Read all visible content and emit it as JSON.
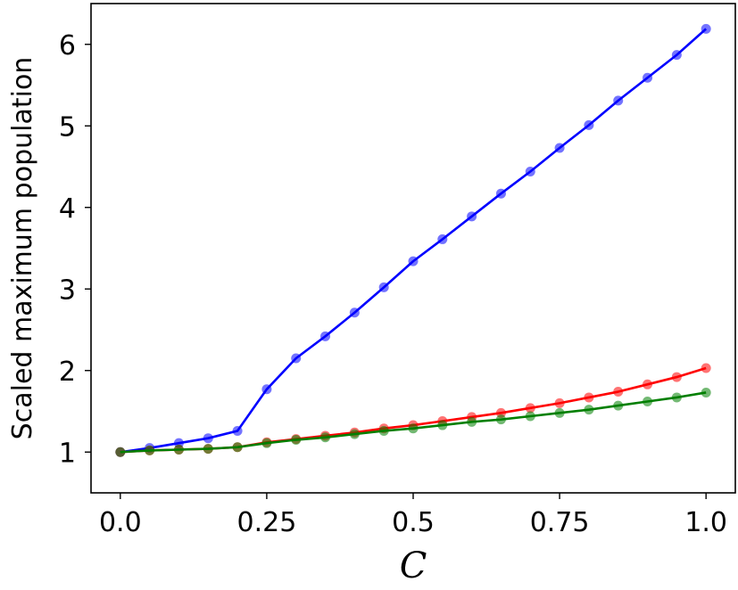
{
  "chart_data": {
    "type": "line",
    "xlabel": "C",
    "ylabel": "Scaled maximum population",
    "xlim": [
      -0.05,
      1.05
    ],
    "ylim": [
      0.5,
      6.5
    ],
    "xticks": [
      0.0,
      0.25,
      0.5,
      0.75,
      1.0
    ],
    "xtick_labels": [
      "0.0",
      "0.25",
      "0.5",
      "0.75",
      "1.0"
    ],
    "yticks": [
      1,
      2,
      3,
      4,
      5,
      6
    ],
    "ytick_labels": [
      "1",
      "2",
      "3",
      "4",
      "5",
      "6"
    ],
    "grid": false,
    "x": [
      0.0,
      0.05,
      0.1,
      0.15,
      0.2,
      0.25,
      0.3,
      0.35,
      0.4,
      0.45,
      0.5,
      0.55,
      0.6,
      0.65,
      0.7,
      0.75,
      0.8,
      0.85,
      0.9,
      0.95,
      1.0
    ],
    "series": [
      {
        "color": "#0000ff",
        "values": [
          1.0,
          1.05,
          1.11,
          1.17,
          1.26,
          1.77,
          2.15,
          2.42,
          2.71,
          3.02,
          3.34,
          3.61,
          3.89,
          4.17,
          4.44,
          4.73,
          5.01,
          5.31,
          5.59,
          5.87,
          6.19
        ]
      },
      {
        "color": "#ff0000",
        "values": [
          1.0,
          1.02,
          1.03,
          1.04,
          1.06,
          1.12,
          1.16,
          1.2,
          1.24,
          1.29,
          1.33,
          1.38,
          1.43,
          1.48,
          1.54,
          1.6,
          1.67,
          1.74,
          1.83,
          1.92,
          2.03
        ]
      },
      {
        "color": "#007f00",
        "values": [
          1.0,
          1.02,
          1.03,
          1.04,
          1.06,
          1.11,
          1.15,
          1.18,
          1.22,
          1.26,
          1.29,
          1.33,
          1.37,
          1.4,
          1.44,
          1.48,
          1.52,
          1.57,
          1.62,
          1.67,
          1.73
        ]
      }
    ]
  }
}
